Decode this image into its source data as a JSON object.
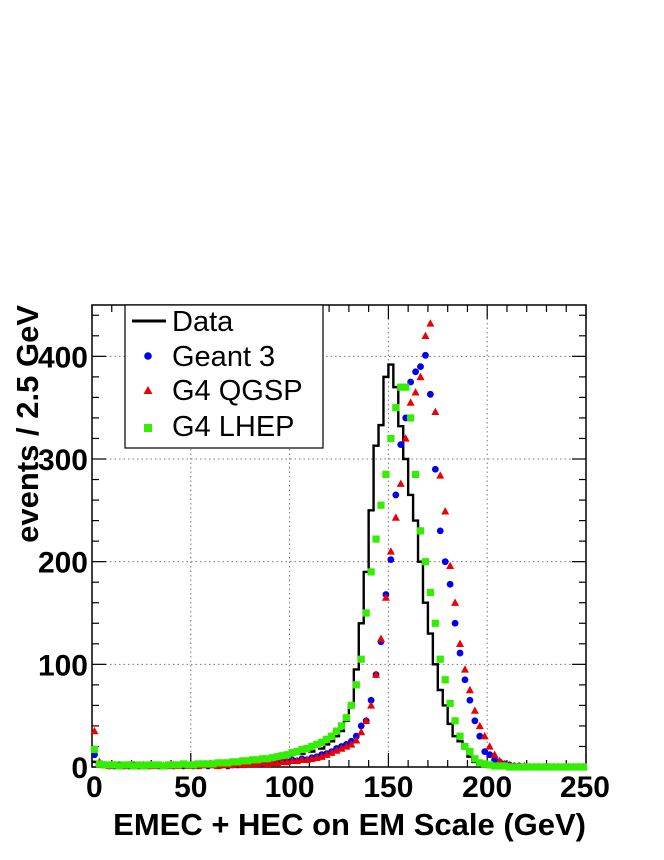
{
  "chart_data": {
    "type": "scatter",
    "xlabel": "EMEC + HEC on EM Scale (GeV)",
    "ylabel": "events / 2.5 GeV",
    "xlim": [
      0,
      250
    ],
    "ylim": [
      0,
      450
    ],
    "x_ticks": [
      0,
      50,
      100,
      150,
      200,
      250
    ],
    "y_ticks": [
      0,
      100,
      200,
      300,
      400
    ],
    "x_tick_labels": [
      "0",
      "50",
      "100",
      "150",
      "200",
      "250"
    ],
    "y_tick_labels": [
      "0",
      "100",
      "200",
      "300",
      "400"
    ],
    "grid": true,
    "legend_position": "top-left",
    "bin_width": 2.5,
    "series": [
      {
        "name": "Data",
        "style": "histogram",
        "color": "#000000",
        "x": [
          0,
          2.5,
          5,
          7.5,
          10,
          12.5,
          15,
          17.5,
          20,
          22.5,
          25,
          27.5,
          30,
          32.5,
          35,
          37.5,
          40,
          42.5,
          45,
          47.5,
          50,
          52.5,
          55,
          57.5,
          60,
          62.5,
          65,
          67.5,
          70,
          72.5,
          75,
          77.5,
          80,
          82.5,
          85,
          87.5,
          90,
          92.5,
          95,
          97.5,
          100,
          102.5,
          105,
          107.5,
          110,
          112.5,
          115,
          117.5,
          120,
          122.5,
          125,
          127.5,
          130,
          132.5,
          135,
          137.5,
          140,
          142.5,
          145,
          147.5,
          150,
          152.5,
          155,
          157.5,
          160,
          162.5,
          165,
          167.5,
          170,
          172.5,
          175,
          177.5,
          180,
          182.5,
          185,
          187.5,
          190,
          192.5,
          195,
          197.5,
          200,
          202.5,
          205,
          207.5,
          210,
          212.5,
          215,
          217.5,
          220,
          222.5,
          225,
          227.5,
          230,
          232.5,
          235,
          237.5,
          240,
          242.5,
          245,
          247.5
        ],
        "y": [
          5,
          2,
          2,
          1,
          1,
          2,
          1,
          1,
          1,
          2,
          1,
          1,
          2,
          1,
          1,
          2,
          1,
          2,
          2,
          1,
          2,
          2,
          3,
          2,
          3,
          2,
          3,
          3,
          3,
          4,
          3,
          4,
          5,
          5,
          6,
          7,
          8,
          9,
          8,
          10,
          12,
          14,
          13,
          16,
          15,
          20,
          18,
          22,
          25,
          30,
          35,
          45,
          60,
          95,
          140,
          190,
          250,
          313,
          333,
          380,
          392,
          370,
          332,
          300,
          265,
          240,
          200,
          160,
          130,
          100,
          75,
          60,
          42,
          30,
          25,
          18,
          10,
          5,
          3,
          2,
          1,
          1,
          0,
          0,
          0,
          0,
          0,
          0,
          0,
          0,
          0,
          0,
          0,
          0,
          0,
          0,
          0,
          0,
          0,
          0
        ]
      },
      {
        "name": "Geant 3",
        "marker": "circle",
        "color": "#0000ee",
        "x": [
          1.25,
          3.75,
          6.25,
          8.75,
          11.25,
          13.75,
          16.25,
          18.75,
          21.25,
          23.75,
          26.25,
          28.75,
          31.25,
          33.75,
          36.25,
          38.75,
          41.25,
          43.75,
          46.25,
          48.75,
          51.25,
          53.75,
          56.25,
          58.75,
          61.25,
          63.75,
          66.25,
          68.75,
          71.25,
          73.75,
          76.25,
          78.75,
          81.25,
          83.75,
          86.25,
          88.75,
          91.25,
          93.75,
          96.25,
          98.75,
          101.25,
          103.75,
          106.25,
          108.75,
          111.25,
          113.75,
          116.25,
          118.75,
          121.25,
          123.75,
          126.25,
          128.75,
          131.25,
          133.75,
          136.25,
          138.75,
          141.25,
          143.75,
          146.25,
          148.75,
          151.25,
          153.75,
          156.25,
          158.75,
          161.25,
          163.75,
          166.25,
          168.75,
          171.25,
          173.75,
          176.25,
          178.75,
          181.25,
          183.75,
          186.25,
          188.75,
          191.25,
          193.75,
          196.25,
          198.75,
          201.25,
          203.75,
          206.25,
          208.75,
          211.25,
          213.75,
          216.25,
          218.75,
          221.25,
          223.75,
          226.25,
          228.75,
          231.25,
          233.75,
          236.25,
          238.75,
          241.25,
          243.75,
          246.25,
          248.75
        ],
        "y": [
          12,
          3,
          2,
          1,
          1,
          2,
          1,
          1,
          2,
          1,
          1,
          1,
          2,
          1,
          1,
          2,
          1,
          2,
          1,
          2,
          1,
          2,
          2,
          1,
          2,
          2,
          2,
          1,
          2,
          2,
          3,
          3,
          3,
          4,
          3,
          4,
          5,
          5,
          6,
          5,
          7,
          6,
          8,
          7,
          9,
          10,
          12,
          13,
          15,
          18,
          20,
          22,
          25,
          30,
          40,
          45,
          65,
          90,
          122,
          168,
          202,
          265,
          314,
          340,
          375,
          385,
          390,
          401,
          363,
          290,
          230,
          200,
          178,
          140,
          111,
          85,
          65,
          45,
          30,
          15,
          12,
          7,
          5,
          3,
          2,
          1,
          1,
          0,
          0,
          0,
          0,
          0,
          0,
          0,
          0,
          0,
          0,
          0,
          0,
          0
        ]
      },
      {
        "name": "G4 QGSP",
        "marker": "triangle",
        "color": "#ee0000",
        "x": [
          1.25,
          3.75,
          6.25,
          8.75,
          11.25,
          13.75,
          16.25,
          18.75,
          21.25,
          23.75,
          26.25,
          28.75,
          31.25,
          33.75,
          36.25,
          38.75,
          41.25,
          43.75,
          46.25,
          48.75,
          51.25,
          53.75,
          56.25,
          58.75,
          61.25,
          63.75,
          66.25,
          68.75,
          71.25,
          73.75,
          76.25,
          78.75,
          81.25,
          83.75,
          86.25,
          88.75,
          91.25,
          93.75,
          96.25,
          98.75,
          101.25,
          103.75,
          106.25,
          108.75,
          111.25,
          113.75,
          116.25,
          118.75,
          121.25,
          123.75,
          126.25,
          128.75,
          131.25,
          133.75,
          136.25,
          138.75,
          141.25,
          143.75,
          146.25,
          148.75,
          151.25,
          153.75,
          156.25,
          158.75,
          161.25,
          163.75,
          166.25,
          168.75,
          171.25,
          173.75,
          176.25,
          178.75,
          181.25,
          183.75,
          186.25,
          188.75,
          191.25,
          193.75,
          196.25,
          198.75,
          201.25,
          203.75,
          206.25,
          208.75,
          211.25,
          213.75,
          216.25,
          218.75,
          221.25,
          223.75,
          226.25,
          228.75,
          231.25,
          233.75,
          236.25,
          238.75,
          241.25,
          243.75,
          246.25,
          248.75
        ],
        "y": [
          35,
          5,
          2,
          1,
          2,
          1,
          1,
          2,
          1,
          1,
          2,
          1,
          1,
          2,
          1,
          1,
          2,
          1,
          2,
          1,
          2,
          1,
          2,
          2,
          2,
          1,
          2,
          2,
          2,
          3,
          2,
          3,
          3,
          3,
          4,
          3,
          4,
          4,
          5,
          5,
          6,
          6,
          7,
          7,
          8,
          9,
          10,
          12,
          14,
          16,
          18,
          20,
          22,
          26,
          34,
          45,
          60,
          90,
          125,
          165,
          210,
          243,
          276,
          320,
          355,
          365,
          380,
          420,
          432,
          346,
          284,
          249,
          196,
          160,
          120,
          95,
          75,
          55,
          40,
          30,
          20,
          12,
          6,
          3,
          2,
          1,
          1,
          1,
          0,
          0,
          0,
          0,
          0,
          0,
          0,
          0,
          0,
          0,
          0,
          0
        ]
      },
      {
        "name": "G4 LHEP",
        "marker": "square",
        "color": "#33ee00",
        "x": [
          1.25,
          3.75,
          6.25,
          8.75,
          11.25,
          13.75,
          16.25,
          18.75,
          21.25,
          23.75,
          26.25,
          28.75,
          31.25,
          33.75,
          36.25,
          38.75,
          41.25,
          43.75,
          46.25,
          48.75,
          51.25,
          53.75,
          56.25,
          58.75,
          61.25,
          63.75,
          66.25,
          68.75,
          71.25,
          73.75,
          76.25,
          78.75,
          81.25,
          83.75,
          86.25,
          88.75,
          91.25,
          93.75,
          96.25,
          98.75,
          101.25,
          103.75,
          106.25,
          108.75,
          111.25,
          113.75,
          116.25,
          118.75,
          121.25,
          123.75,
          126.25,
          128.75,
          131.25,
          133.75,
          136.25,
          138.75,
          141.25,
          143.75,
          146.25,
          148.75,
          151.25,
          153.75,
          156.25,
          158.75,
          161.25,
          163.75,
          166.25,
          168.75,
          171.25,
          173.75,
          176.25,
          178.75,
          181.25,
          183.75,
          186.25,
          188.75,
          191.25,
          193.75,
          196.25,
          198.75,
          201.25,
          203.75,
          206.25,
          208.75,
          211.25,
          213.75,
          216.25,
          218.75,
          221.25,
          223.75,
          226.25,
          228.75,
          231.25,
          233.75,
          236.25,
          238.75,
          241.25,
          243.75,
          246.25,
          248.75
        ],
        "y": [
          17,
          3,
          2,
          2,
          2,
          1,
          2,
          2,
          1,
          2,
          1,
          2,
          2,
          2,
          1,
          2,
          2,
          2,
          3,
          2,
          2,
          3,
          3,
          3,
          3,
          4,
          4,
          4,
          5,
          5,
          6,
          6,
          7,
          7,
          8,
          8,
          9,
          10,
          11,
          12,
          14,
          15,
          17,
          18,
          20,
          22,
          24,
          27,
          30,
          35,
          40,
          48,
          60,
          80,
          105,
          150,
          190,
          222,
          255,
          285,
          320,
          350,
          370,
          370,
          340,
          285,
          230,
          200,
          170,
          140,
          105,
          85,
          62,
          45,
          30,
          20,
          15,
          8,
          4,
          3,
          2,
          1,
          1,
          1,
          0,
          0,
          0,
          0,
          0,
          0,
          0,
          0,
          0,
          0,
          0,
          0,
          0,
          0,
          0,
          0
        ]
      }
    ]
  }
}
